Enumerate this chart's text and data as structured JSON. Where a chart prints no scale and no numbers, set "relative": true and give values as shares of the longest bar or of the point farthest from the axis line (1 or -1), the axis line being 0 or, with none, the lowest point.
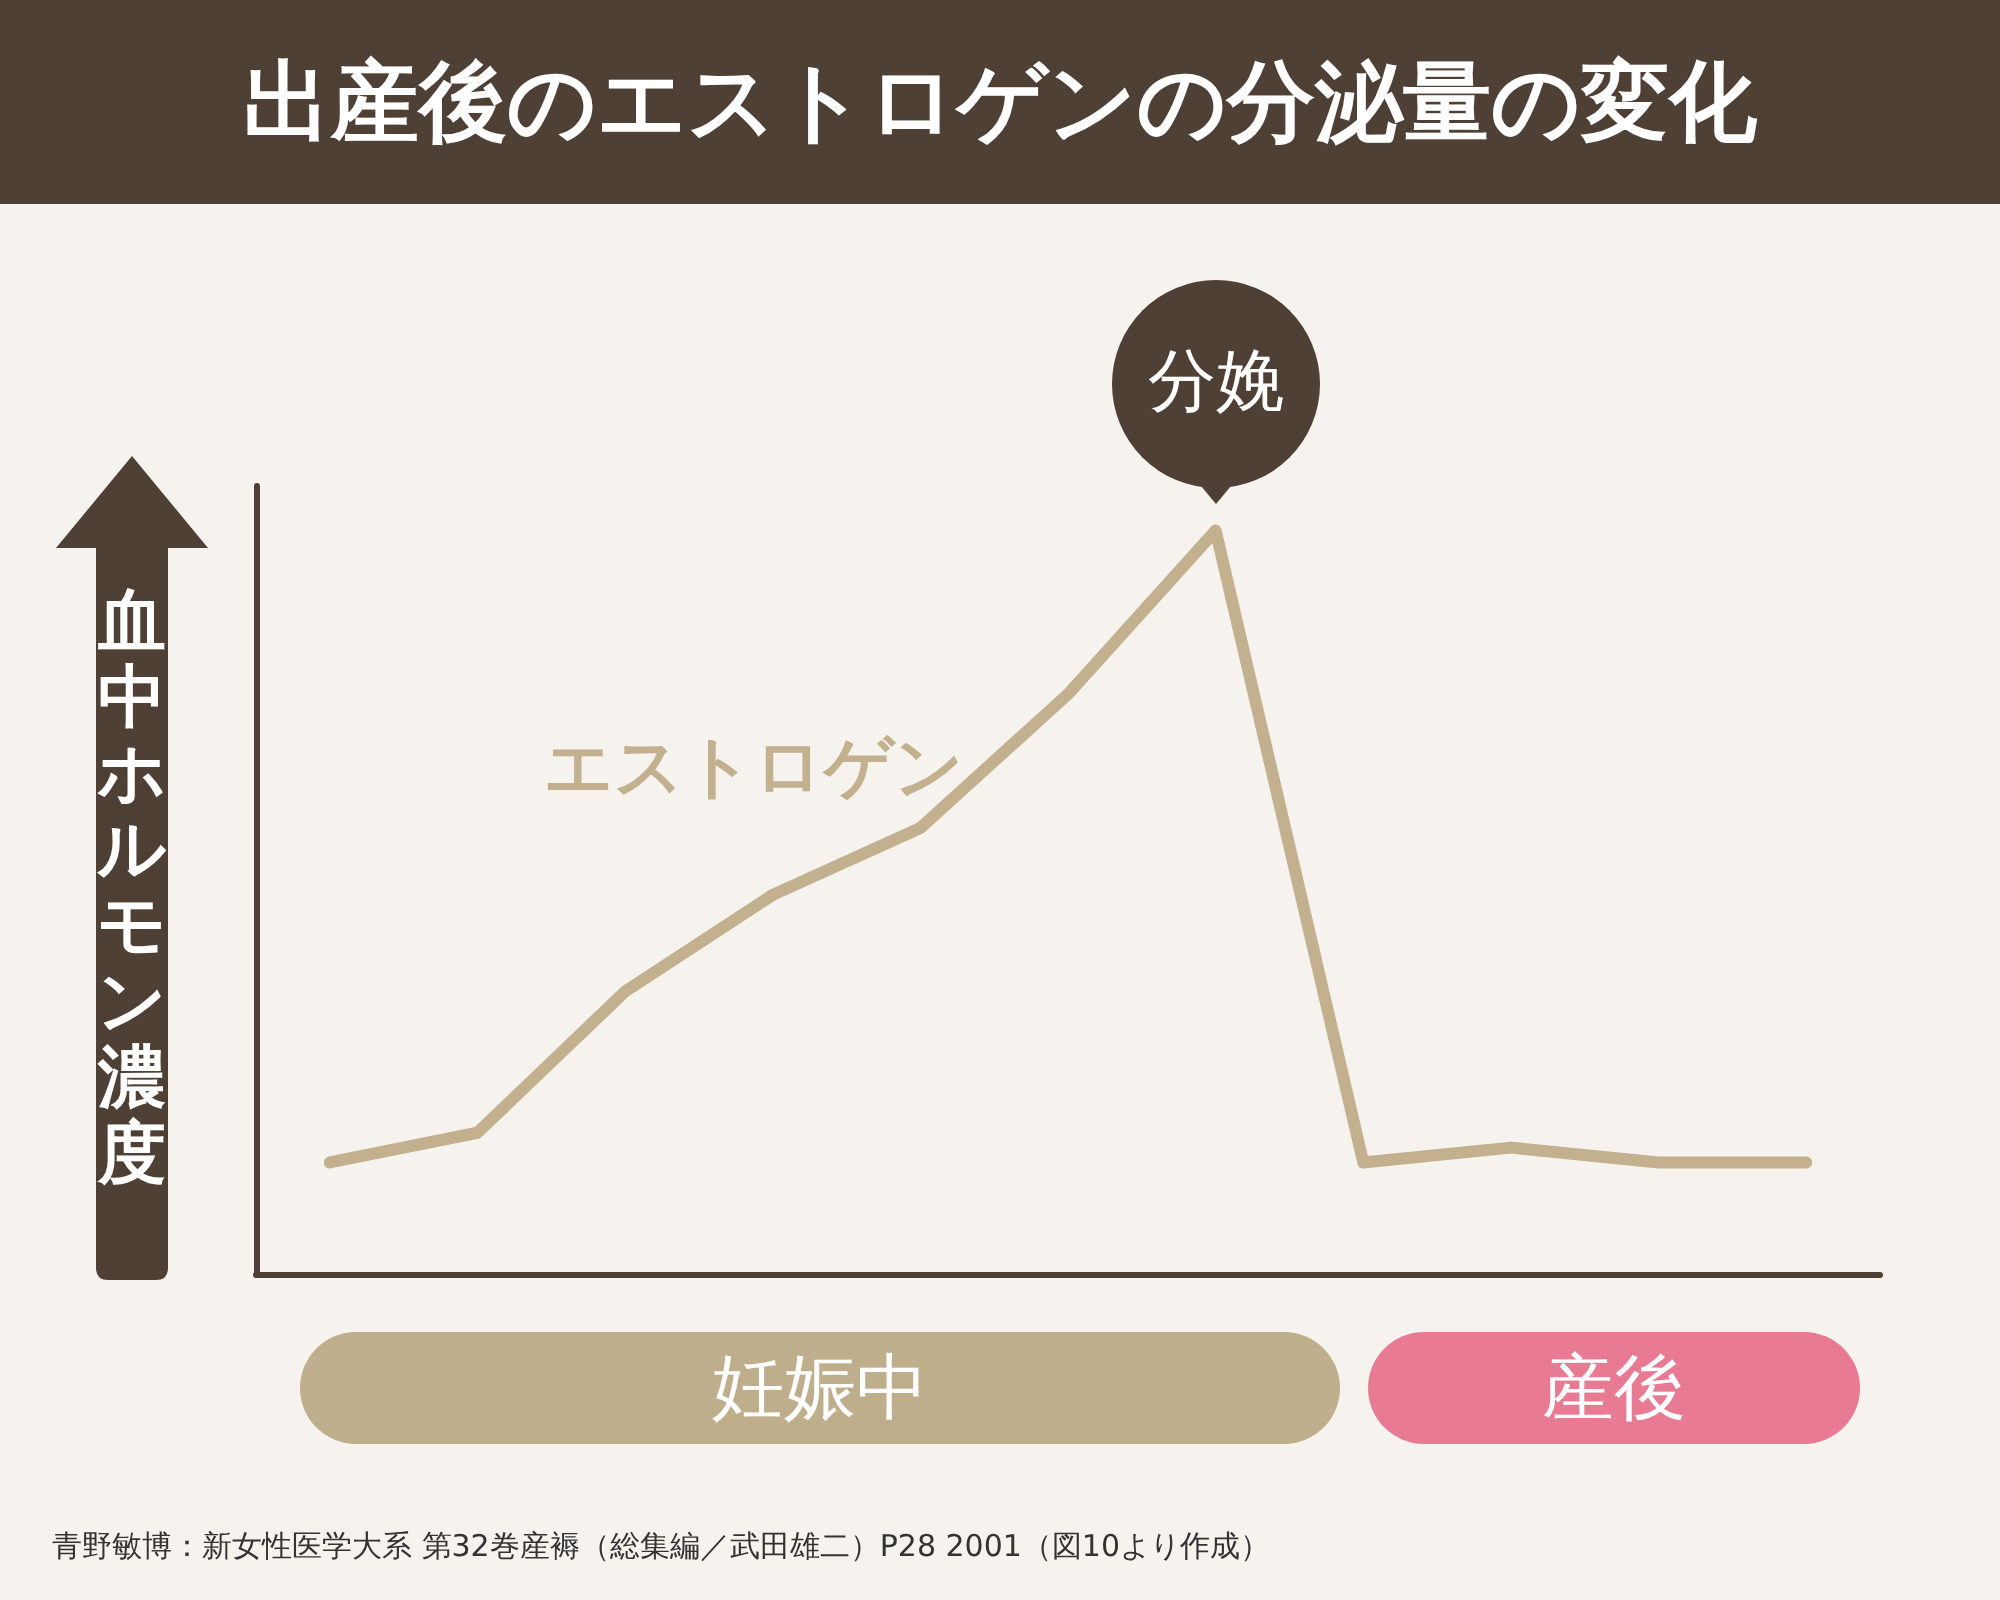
{
  "chart_data": {
    "type": "line",
    "title": "出産後のエストロゲンの分泌量の変化",
    "ylabel": "血中ホルモン濃度",
    "relative": true,
    "categories": [
      null,
      null,
      null,
      null,
      null,
      null,
      null,
      null,
      null,
      null,
      null
    ],
    "series": [
      {
        "name": "エストロゲン",
        "color": "#c2b08e",
        "values": [
          0.15,
          0.19,
          0.38,
          0.51,
          0.6,
          0.78,
          1,
          0.15,
          0.17,
          0.15,
          0.15
        ]
      }
    ],
    "annotations": [
      {
        "text": "分娩",
        "y": 1
      },
      "妊娠中",
      "産後",
      "青野敏博：新女性医学大系 第32巻産褥（総集編／武田雄二）P28 2001（図10より作成）"
    ],
    "grid": false,
    "marker": "none",
    "line_style": "solid"
  }
}
